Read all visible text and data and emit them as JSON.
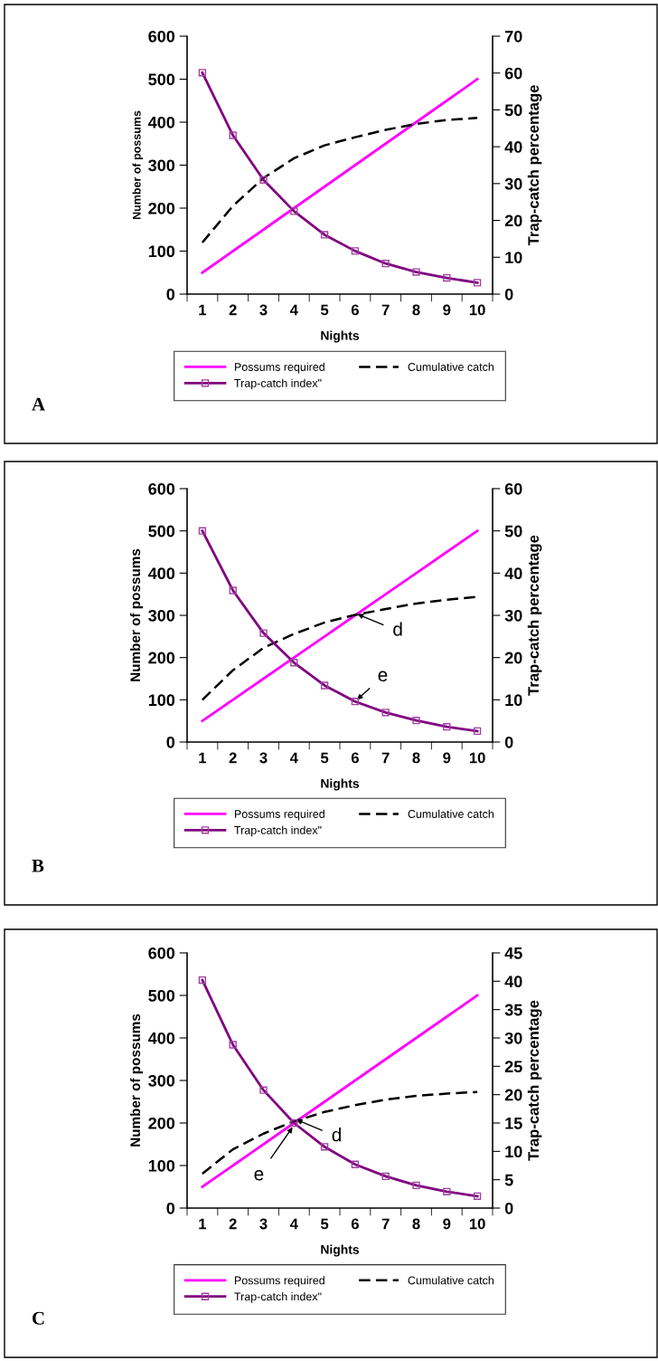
{
  "chart_data": [
    {
      "type": "line",
      "xlabel": "Nights",
      "ylabel": "Number of possums",
      "y2label": "Trap-catch percentage",
      "categories": [
        "1",
        "2",
        "3",
        "4",
        "5",
        "6",
        "7",
        "8",
        "9",
        "10"
      ],
      "ylim": [
        0,
        600
      ],
      "yticks": [
        0,
        100,
        200,
        300,
        400,
        500,
        600
      ],
      "y2lim": [
        0,
        70
      ],
      "y2ticks": [
        0,
        10,
        20,
        30,
        40,
        50,
        60,
        70
      ],
      "legend": "bottom",
      "grid": false,
      "series": [
        {
          "name": "Possums required",
          "color": "#ff00ff",
          "line_style": "solid",
          "marker": "none",
          "values": [
            50,
            100,
            150,
            200,
            250,
            300,
            350,
            400,
            450,
            500
          ]
        },
        {
          "name": "Cumulative catch",
          "color": "#000000",
          "line_style": "dashed",
          "marker": "none",
          "values": [
            120,
            205,
            270,
            316,
            346,
            365,
            382,
            396,
            405,
            410
          ]
        },
        {
          "name": "Trap-catch index\"",
          "color": "#800080",
          "line_style": "solid",
          "marker": "square",
          "axis": "y2",
          "values": [
            60.1,
            43.1,
            31.0,
            22.5,
            16.1,
            11.7,
            8.3,
            6.0,
            4.4,
            3.1
          ]
        }
      ],
      "annotations": [
        "A"
      ]
    },
    {
      "type": "line",
      "xlabel": "Nights",
      "ylabel": "Number of possums",
      "y2label": "Trap-catch percentage",
      "categories": [
        "1",
        "2",
        "3",
        "4",
        "5",
        "6",
        "7",
        "8",
        "9",
        "10"
      ],
      "ylim": [
        0,
        600
      ],
      "yticks": [
        0,
        100,
        200,
        300,
        400,
        500,
        600
      ],
      "y2lim": [
        0,
        60
      ],
      "y2ticks": [
        0,
        10,
        20,
        30,
        40,
        50,
        60
      ],
      "legend": "bottom",
      "grid": false,
      "series": [
        {
          "name": "Possums required",
          "color": "#ff00ff",
          "line_style": "solid",
          "marker": "none",
          "values": [
            50,
            100,
            150,
            200,
            250,
            300,
            350,
            400,
            450,
            500
          ]
        },
        {
          "name": "Cumulative catch",
          "color": "#000000",
          "line_style": "dashed",
          "marker": "none",
          "values": [
            100,
            170,
            223,
            256,
            283,
            301,
            315,
            328,
            337,
            344
          ]
        },
        {
          "name": "Trap-catch index\"",
          "color": "#800080",
          "line_style": "solid",
          "marker": "square",
          "axis": "y2",
          "values": [
            50.0,
            35.9,
            25.8,
            18.8,
            13.4,
            9.6,
            7.0,
            5.1,
            3.6,
            2.6
          ]
        }
      ],
      "annotations": [
        {
          "text": "d",
          "x": "6",
          "y": 305
        },
        {
          "text": "e",
          "x": "6",
          "y": 96
        },
        "B"
      ]
    },
    {
      "type": "line",
      "xlabel": "Nights",
      "ylabel": "Number of possums",
      "y2label": "Trap-catch percentage",
      "categories": [
        "1",
        "2",
        "3",
        "4",
        "5",
        "6",
        "7",
        "8",
        "9",
        "10"
      ],
      "ylim": [
        0,
        600
      ],
      "yticks": [
        0,
        100,
        200,
        300,
        400,
        500,
        600
      ],
      "y2lim": [
        0,
        45
      ],
      "y2ticks": [
        0,
        5,
        10,
        15,
        20,
        25,
        30,
        35,
        40,
        45
      ],
      "legend": "bottom",
      "grid": false,
      "series": [
        {
          "name": "Possums required",
          "color": "#ff00ff",
          "line_style": "solid",
          "marker": "none",
          "values": [
            50,
            100,
            150,
            200,
            250,
            300,
            350,
            400,
            450,
            500
          ]
        },
        {
          "name": "Cumulative catch",
          "color": "#000000",
          "line_style": "dashed",
          "marker": "none",
          "values": [
            81,
            138,
            175,
            204,
            226,
            242,
            255,
            264,
            269,
            273
          ]
        },
        {
          "name": "Trap-catch index\"",
          "color": "#800080",
          "line_style": "solid",
          "marker": "square",
          "axis": "y2",
          "values": [
            40.2,
            28.8,
            20.8,
            15.0,
            10.8,
            7.7,
            5.6,
            4.0,
            2.9,
            2.1
          ]
        }
      ],
      "annotations": [
        {
          "text": "d",
          "x": "4",
          "y": 210
        },
        {
          "text": "e",
          "x": "4",
          "y": 195
        },
        "C"
      ]
    }
  ]
}
